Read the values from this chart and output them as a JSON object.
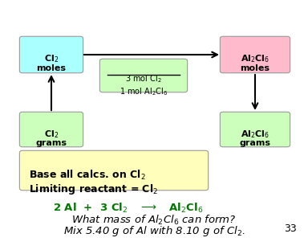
{
  "title_line1": "Mix 5.40 g of Al with 8.10 g of Cl$_2$.",
  "title_line2": "What mass of Al$_2$Cl$_6$ can form?",
  "equation": "2 Al  +  3 Cl$_2$   $\\longrightarrow$   Al$_2$Cl$_6$",
  "equation_color": "#007700",
  "title_color": "#000000",
  "slide_number": "33",
  "limiting_line1": "Limiting reactant = Cl$_2$",
  "limiting_line2": "Base all calcs. on Cl$_2$",
  "limiting_box_color": "#ffffbb",
  "box_green_color": "#ccffbb",
  "box_cyan_color": "#aaffff",
  "box_pink_color": "#ffbbcc",
  "background_color": "#ffffff",
  "box1_label1": "grams",
  "box1_label2": "Cl$_2$",
  "box2_label1": "moles",
  "box2_label2": "Cl$_2$",
  "box3_label1": "grams",
  "box3_label2": "Al$_2$Cl$_6$",
  "box4_label1": "moles",
  "box4_label2": "Al$_2$Cl$_6$",
  "ratio_num": "1 mol Al$_2$Cl$_6$",
  "ratio_den": "3 mol Cl$_2$"
}
